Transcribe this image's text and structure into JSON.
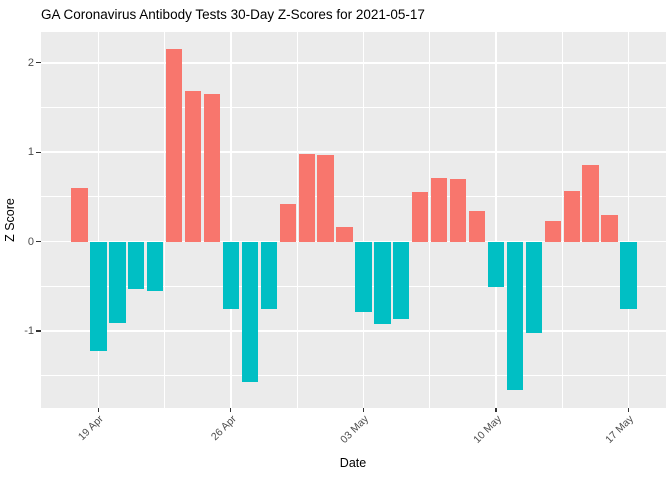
{
  "title": "GA Coronavirus Antibody Tests 30-Day Z-Scores for 2021-05-17",
  "chart_data": {
    "type": "bar",
    "title": "GA Coronavirus Antibody Tests 30-Day Z-Scores for 2021-05-17",
    "xlabel": "Date",
    "ylabel": "Z Score",
    "categories": [
      "18 Apr",
      "19 Apr",
      "20 Apr",
      "21 Apr",
      "22 Apr",
      "23 Apr",
      "24 Apr",
      "25 Apr",
      "26 Apr",
      "27 Apr",
      "28 Apr",
      "29 Apr",
      "30 Apr",
      "01 May",
      "02 May",
      "03 May",
      "04 May",
      "05 May",
      "06 May",
      "07 May",
      "08 May",
      "09 May",
      "10 May",
      "11 May",
      "12 May",
      "13 May",
      "14 May",
      "15 May",
      "16 May",
      "17 May"
    ],
    "values": [
      0.6,
      -1.22,
      -0.91,
      -0.53,
      -0.55,
      2.16,
      1.69,
      1.65,
      -0.76,
      -1.57,
      -0.76,
      0.42,
      0.98,
      0.97,
      0.16,
      -0.79,
      -0.92,
      -0.87,
      0.55,
      0.71,
      0.7,
      0.34,
      -0.51,
      -1.66,
      -1.02,
      0.23,
      0.57,
      0.86,
      0.3,
      -0.75
    ],
    "x_tick_labels": [
      "19 Apr",
      "26 Apr",
      "03 May",
      "10 May",
      "17 May"
    ],
    "y_ticks": [
      2,
      1,
      0,
      -1
    ],
    "y_minor_ticks": [
      1.5,
      0.5,
      -0.5,
      -1.5
    ],
    "ylim": [
      -1.86,
      2.35
    ],
    "grid": true,
    "legend_position": "none",
    "colors": {
      "positive_bar": "#F8766D",
      "negative_bar": "#00BFC4",
      "panel_background": "#EBEBEB",
      "gridline": "#FFFFFF",
      "axis_text": "#4D4D4D",
      "tick_mark": "#333333",
      "title_text": "#000000"
    }
  }
}
